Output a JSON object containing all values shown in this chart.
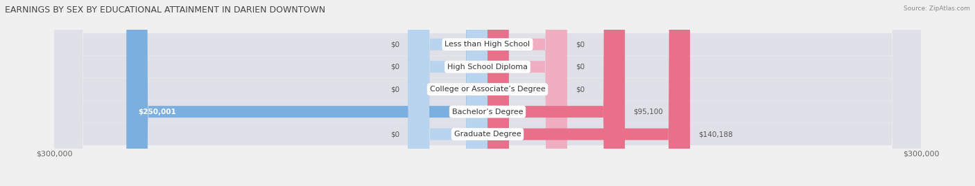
{
  "title": "EARNINGS BY SEX BY EDUCATIONAL ATTAINMENT IN DARIEN DOWNTOWN",
  "source": "Source: ZipAtlas.com",
  "categories": [
    "Less than High School",
    "High School Diploma",
    "College or Associate’s Degree",
    "Bachelor’s Degree",
    "Graduate Degree"
  ],
  "male_values": [
    0,
    0,
    0,
    250001,
    0
  ],
  "female_values": [
    0,
    0,
    0,
    95100,
    140188
  ],
  "male_color": "#7aafe0",
  "female_color": "#e8708a",
  "male_color_light": "#b8d4ee",
  "female_color_light": "#f0afc0",
  "max_val": 300000,
  "background_color": "#f0f0f0",
  "row_bg_light": "#e8e8ec",
  "row_bg_dark": "#dcdce4",
  "title_fontsize": 9,
  "label_fontsize": 8,
  "tick_fontsize": 8,
  "value_label_fontsize": 7.5
}
